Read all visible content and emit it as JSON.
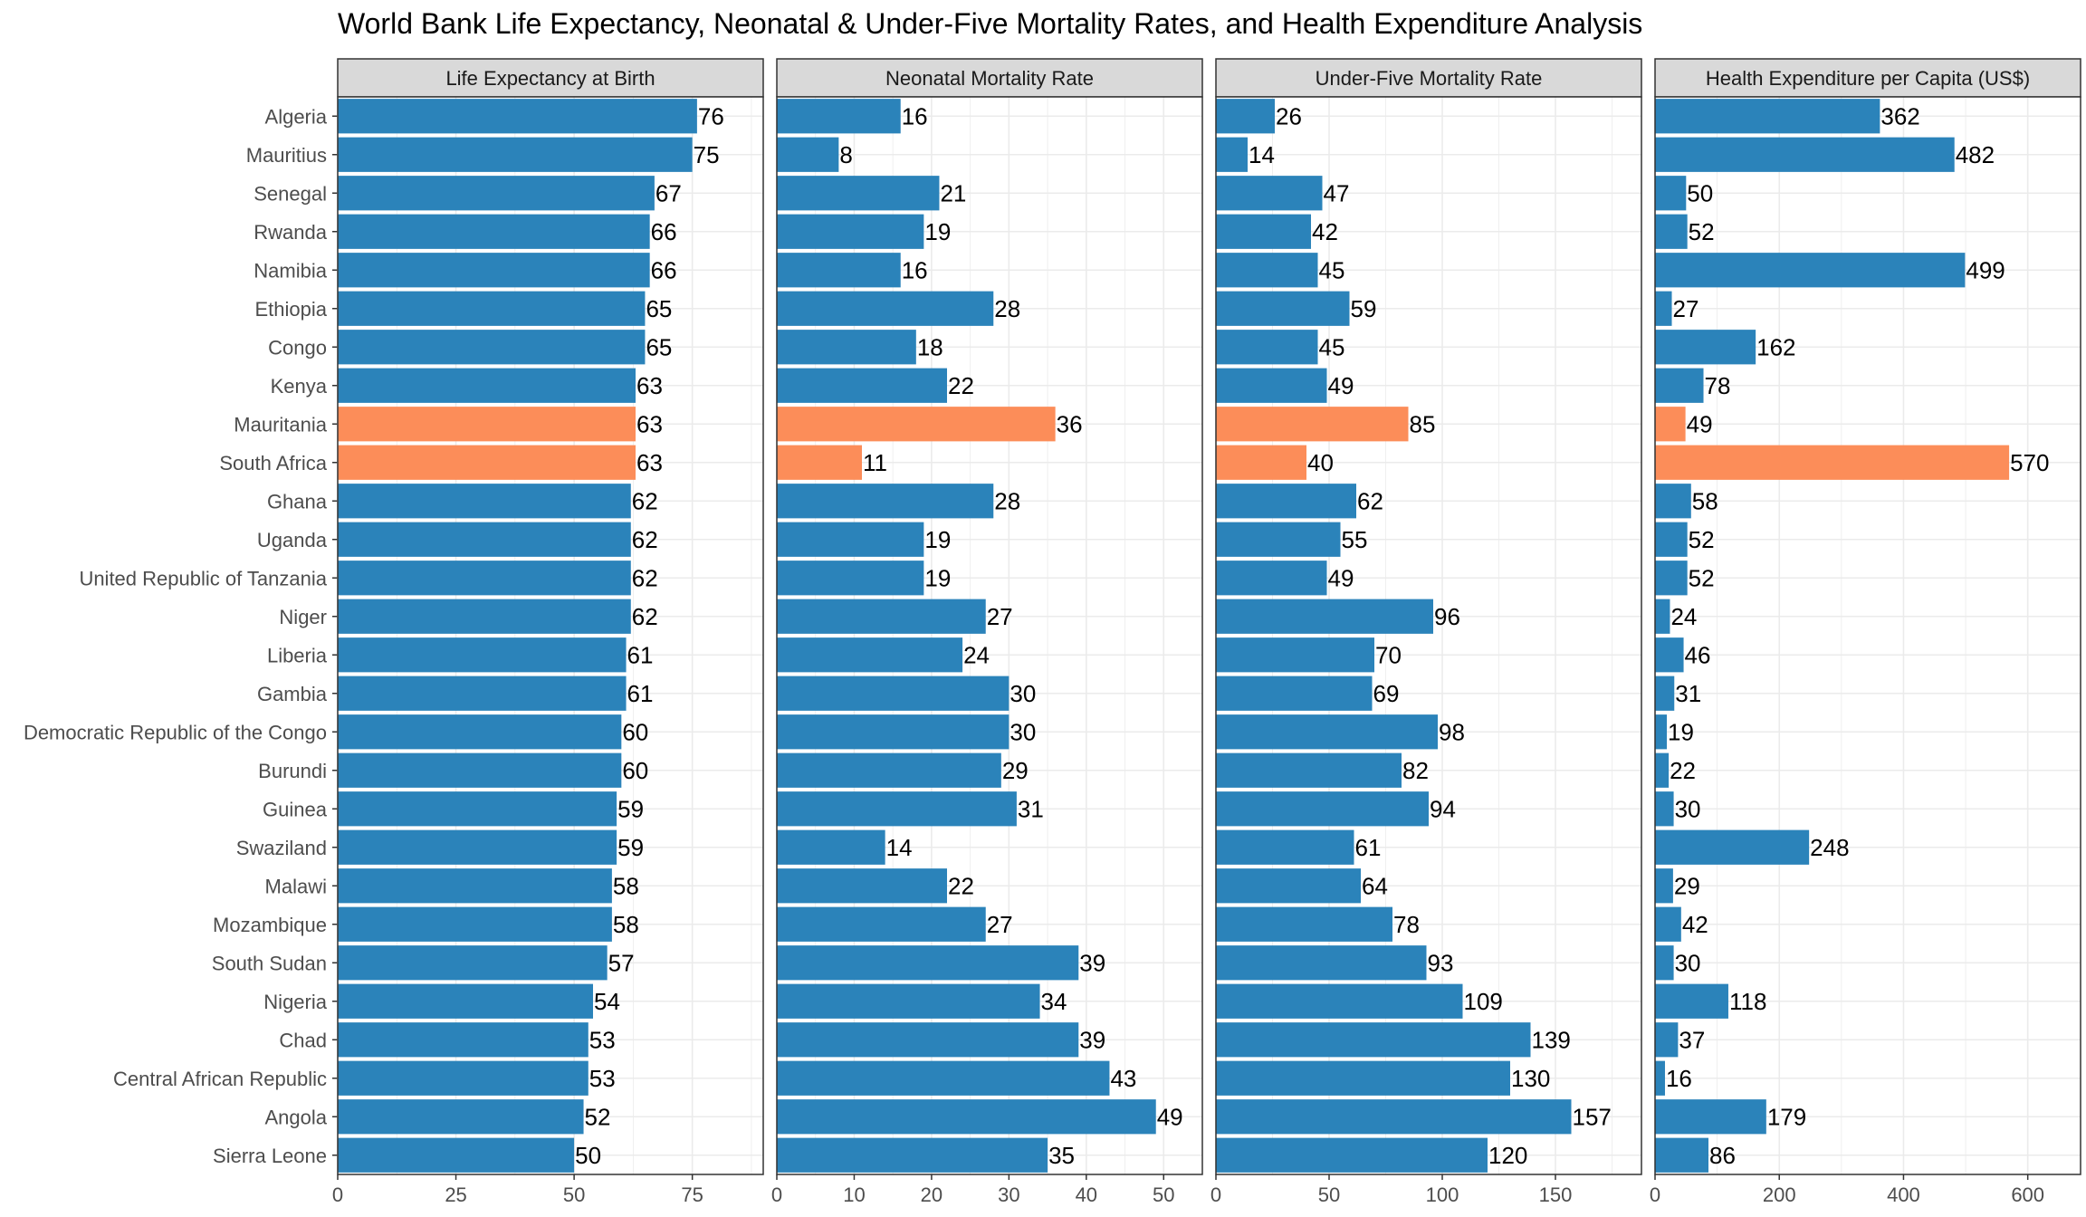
{
  "chart_data": {
    "type": "bar",
    "orientation": "horizontal",
    "title": "World Bank Life Expectancy, Neonatal & Under-Five Mortality Rates, and Health Expenditure Analysis",
    "categories": [
      "Algeria",
      "Mauritius",
      "Senegal",
      "Rwanda",
      "Namibia",
      "Ethiopia",
      "Congo",
      "Kenya",
      "Mauritania",
      "South Africa",
      "Ghana",
      "Uganda",
      "United Republic of Tanzania",
      "Niger",
      "Liberia",
      "Gambia",
      "Democratic Republic of the Congo",
      "Burundi",
      "Guinea",
      "Swaziland",
      "Malawi",
      "Mozambique",
      "South Sudan",
      "Nigeria",
      "Chad",
      "Central African Republic",
      "Angola",
      "Sierra Leone"
    ],
    "highlighted": [
      "Mauritania",
      "South Africa"
    ],
    "colors": {
      "bar": "#2b83ba",
      "highlight": "#fc8d59",
      "strip": "#d9d9d9",
      "grid": "#ebebeb"
    },
    "grid": true,
    "facets": [
      {
        "name": "Life Expectancy at Birth",
        "xlim": [
          0,
          90
        ],
        "ticks": [
          0,
          25,
          50,
          75
        ],
        "values": [
          76,
          75,
          67,
          66,
          66,
          65,
          65,
          63,
          63,
          63,
          62,
          62,
          62,
          62,
          61,
          61,
          60,
          60,
          59,
          59,
          58,
          58,
          57,
          54,
          53,
          53,
          52,
          50
        ]
      },
      {
        "name": "Neonatal Mortality Rate",
        "xlim": [
          0,
          55
        ],
        "ticks": [
          0,
          10,
          20,
          30,
          40,
          50
        ],
        "values": [
          16,
          8,
          21,
          19,
          16,
          28,
          18,
          22,
          36,
          11,
          28,
          19,
          19,
          27,
          24,
          30,
          30,
          29,
          31,
          14,
          22,
          27,
          39,
          34,
          39,
          43,
          49,
          35
        ]
      },
      {
        "name": "Under-Five Mortality Rate",
        "xlim": [
          0,
          188
        ],
        "ticks": [
          0,
          50,
          100,
          150
        ],
        "values": [
          26,
          14,
          47,
          42,
          45,
          59,
          45,
          49,
          85,
          40,
          62,
          55,
          49,
          96,
          70,
          69,
          98,
          82,
          94,
          61,
          64,
          78,
          93,
          109,
          139,
          130,
          157,
          120
        ]
      },
      {
        "name": "Health Expenditure per Capita (US$)",
        "xlim": [
          0,
          685
        ],
        "ticks": [
          0,
          200,
          400,
          600
        ],
        "values": [
          362,
          482,
          50,
          52,
          499,
          27,
          162,
          78,
          49,
          570,
          58,
          52,
          52,
          24,
          46,
          31,
          19,
          22,
          30,
          248,
          29,
          42,
          30,
          118,
          37,
          16,
          179,
          86
        ]
      }
    ]
  }
}
